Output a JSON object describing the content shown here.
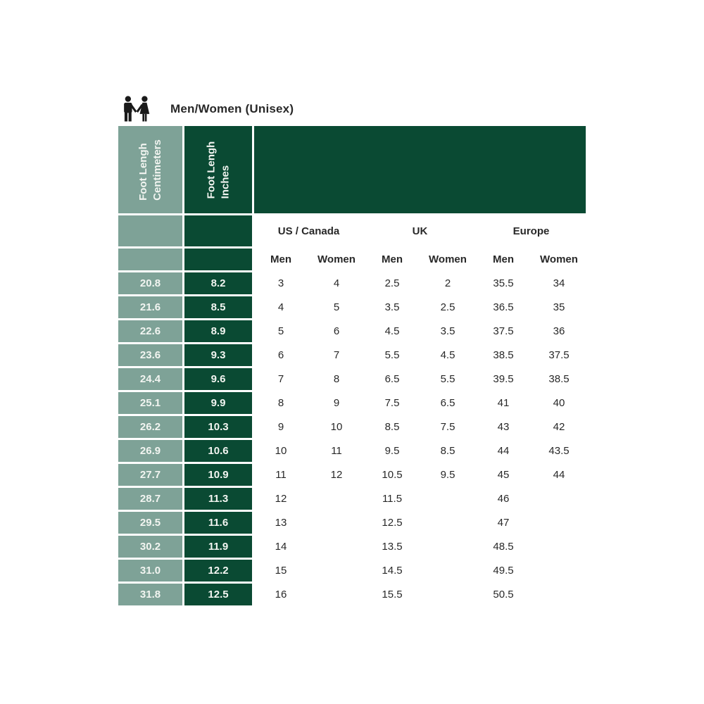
{
  "title": "Men/Women (Unisex)",
  "icon": "men-women-pictogram",
  "colors": {
    "sage": "#7EA297",
    "dark_green": "#0A4A33",
    "text_dark": "#282828",
    "text_light": "#F2F5F1",
    "icon_black": "#1A1A1A"
  },
  "chart_data": {
    "type": "table",
    "title": "Men/Women (Unisex)",
    "row_header_columns": [
      {
        "line1": "Foot Lengh",
        "line2": "Centimeters"
      },
      {
        "line1": "Foot Lengh",
        "line2": "Inches"
      }
    ],
    "column_group_headers": [
      {
        "label": "US / Canada"
      },
      {
        "label": "UK"
      },
      {
        "label": "Europe"
      }
    ],
    "sub_headers": [
      "Men",
      "Women",
      "Men",
      "Women",
      "Men",
      "Women"
    ],
    "columns": [
      "Foot Lengh Centimeters",
      "Foot Lengh Inches",
      "US/Canada Men",
      "US/Canada Women",
      "UK Men",
      "UK Women",
      "Europe Men",
      "Europe Women"
    ],
    "rows": [
      {
        "cm": "20.8",
        "inch": "8.2",
        "us_men": "3",
        "us_women": "4",
        "uk_men": "2.5",
        "uk_women": "2",
        "eu_men": "35.5",
        "eu_women": "34"
      },
      {
        "cm": "21.6",
        "inch": "8.5",
        "us_men": "4",
        "us_women": "5",
        "uk_men": "3.5",
        "uk_women": "2.5",
        "eu_men": "36.5",
        "eu_women": "35"
      },
      {
        "cm": "22.6",
        "inch": "8.9",
        "us_men": "5",
        "us_women": "6",
        "uk_men": "4.5",
        "uk_women": "3.5",
        "eu_men": "37.5",
        "eu_women": "36"
      },
      {
        "cm": "23.6",
        "inch": "9.3",
        "us_men": "6",
        "us_women": "7",
        "uk_men": "5.5",
        "uk_women": "4.5",
        "eu_men": "38.5",
        "eu_women": "37.5"
      },
      {
        "cm": "24.4",
        "inch": "9.6",
        "us_men": "7",
        "us_women": "8",
        "uk_men": "6.5",
        "uk_women": "5.5",
        "eu_men": "39.5",
        "eu_women": "38.5"
      },
      {
        "cm": "25.1",
        "inch": "9.9",
        "us_men": "8",
        "us_women": "9",
        "uk_men": "7.5",
        "uk_women": "6.5",
        "eu_men": "41",
        "eu_women": "40"
      },
      {
        "cm": "26.2",
        "inch": "10.3",
        "us_men": "9",
        "us_women": "10",
        "uk_men": "8.5",
        "uk_women": "7.5",
        "eu_men": "43",
        "eu_women": "42"
      },
      {
        "cm": "26.9",
        "inch": "10.6",
        "us_men": "10",
        "us_women": "11",
        "uk_men": "9.5",
        "uk_women": "8.5",
        "eu_men": "44",
        "eu_women": "43.5"
      },
      {
        "cm": "27.7",
        "inch": "10.9",
        "us_men": "11",
        "us_women": "12",
        "uk_men": "10.5",
        "uk_women": "9.5",
        "eu_men": "45",
        "eu_women": "44"
      },
      {
        "cm": "28.7",
        "inch": "11.3",
        "us_men": "12",
        "us_women": "",
        "uk_men": "11.5",
        "uk_women": "",
        "eu_men": "46",
        "eu_women": ""
      },
      {
        "cm": "29.5",
        "inch": "11.6",
        "us_men": "13",
        "us_women": "",
        "uk_men": "12.5",
        "uk_women": "",
        "eu_men": "47",
        "eu_women": ""
      },
      {
        "cm": "30.2",
        "inch": "11.9",
        "us_men": "14",
        "us_women": "",
        "uk_men": "13.5",
        "uk_women": "",
        "eu_men": "48.5",
        "eu_women": ""
      },
      {
        "cm": "31.0",
        "inch": "12.2",
        "us_men": "15",
        "us_women": "",
        "uk_men": "14.5",
        "uk_women": "",
        "eu_men": "49.5",
        "eu_women": ""
      },
      {
        "cm": "31.8",
        "inch": "12.5",
        "us_men": "16",
        "us_women": "",
        "uk_men": "15.5",
        "uk_women": "",
        "eu_men": "50.5",
        "eu_women": ""
      }
    ]
  }
}
